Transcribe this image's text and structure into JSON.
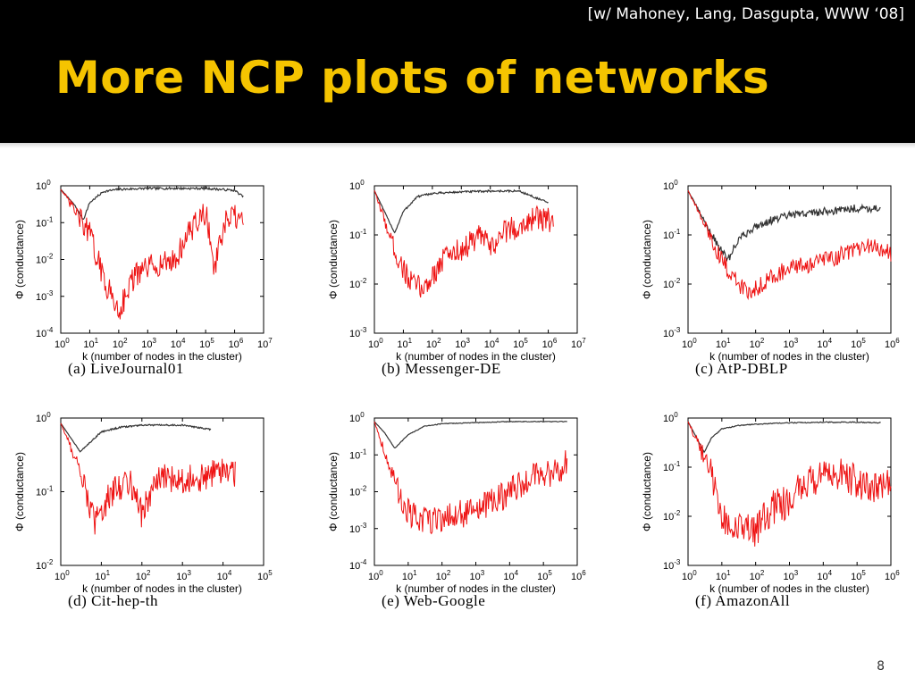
{
  "slide": {
    "citation": "[w/ Mahoney, Lang, Dasgupta, WWW ‘08]",
    "title": "More NCP plots of networks",
    "page_number": "8",
    "colors": {
      "header_bg": "#000000",
      "title": "#f5c400",
      "ncp_red": "#ee1111",
      "baseline_black": "#333333"
    }
  },
  "chart_data": [
    {
      "type": "line",
      "caption": "(a)  LiveJournal01",
      "xlabel": "k (number of nodes in the cluster)",
      "ylabel": "Φ (conductance)",
      "xscale": "log",
      "yscale": "log",
      "xlim_exp": [
        0,
        7
      ],
      "ylim_exp": [
        -4,
        0
      ],
      "series": [
        {
          "color": "#333333",
          "noise": 0.03,
          "x": [
            1,
            3,
            6,
            10,
            30,
            100,
            1000,
            100000,
            1000000,
            2000000
          ],
          "y": [
            0.8,
            0.3,
            0.12,
            0.35,
            0.7,
            0.8,
            0.85,
            0.85,
            0.75,
            0.5
          ]
        },
        {
          "color": "#ee1111",
          "noise": 0.35,
          "x": [
            1,
            10,
            30,
            100,
            300,
            1000,
            10000,
            20000,
            50000,
            100000,
            200000,
            500000,
            1000000,
            2000000
          ],
          "y": [
            0.8,
            0.05,
            0.003,
            0.0004,
            0.003,
            0.006,
            0.01,
            0.04,
            0.1,
            0.2,
            0.006,
            0.1,
            0.15,
            0.08
          ]
        }
      ]
    },
    {
      "type": "line",
      "caption": "(b)  Messenger-DE",
      "xlabel": "k (number of nodes in the cluster)",
      "ylabel": "Φ (conductance)",
      "xscale": "log",
      "yscale": "log",
      "xlim_exp": [
        0,
        7
      ],
      "ylim_exp": [
        -3,
        0
      ],
      "series": [
        {
          "color": "#333333",
          "noise": 0.02,
          "x": [
            1,
            5,
            10,
            30,
            100,
            1000,
            10000,
            100000,
            1000000
          ],
          "y": [
            0.8,
            0.11,
            0.3,
            0.6,
            0.7,
            0.75,
            0.78,
            0.78,
            0.45
          ]
        },
        {
          "color": "#ee1111",
          "noise": 0.25,
          "x": [
            1,
            5,
            10,
            20,
            50,
            100,
            300,
            1000,
            5000,
            10000,
            30000,
            100000,
            300000,
            1000000,
            1500000
          ],
          "y": [
            0.8,
            0.05,
            0.02,
            0.01,
            0.008,
            0.015,
            0.04,
            0.05,
            0.1,
            0.05,
            0.12,
            0.15,
            0.22,
            0.2,
            0.18
          ]
        }
      ]
    },
    {
      "type": "line",
      "caption": "(c)  AtP-DBLP",
      "xlabel": "k (number of nodes in the cluster)",
      "ylabel": "Φ (conductance)",
      "xscale": "log",
      "yscale": "log",
      "xlim_exp": [
        0,
        6
      ],
      "ylim_exp": [
        -3,
        0
      ],
      "series": [
        {
          "color": "#333333",
          "noise": 0.08,
          "x": [
            1,
            5,
            15,
            30,
            100,
            300,
            1000,
            10000,
            100000,
            500000
          ],
          "y": [
            0.8,
            0.1,
            0.03,
            0.08,
            0.15,
            0.2,
            0.25,
            0.3,
            0.35,
            0.35
          ]
        },
        {
          "color": "#ee1111",
          "noise": 0.18,
          "x": [
            1,
            10,
            30,
            60,
            100,
            300,
            1000,
            10000,
            100000,
            300000,
            1000000
          ],
          "y": [
            0.8,
            0.03,
            0.01,
            0.007,
            0.008,
            0.015,
            0.02,
            0.03,
            0.05,
            0.06,
            0.04
          ]
        }
      ]
    },
    {
      "type": "line",
      "caption": "(d)  Cit-hep-th",
      "xlabel": "k (number of nodes in the cluster)",
      "ylabel": "Φ (conductance)",
      "xscale": "log",
      "yscale": "log",
      "xlim_exp": [
        0,
        5
      ],
      "ylim_exp": [
        -2,
        0
      ],
      "series": [
        {
          "color": "#333333",
          "noise": 0.01,
          "x": [
            1,
            3,
            6,
            10,
            30,
            100,
            1000,
            5000
          ],
          "y": [
            0.85,
            0.35,
            0.5,
            0.65,
            0.75,
            0.8,
            0.8,
            0.7
          ]
        },
        {
          "color": "#ee1111",
          "noise": 0.2,
          "x": [
            1,
            3,
            7,
            10,
            20,
            50,
            100,
            200,
            300,
            1000,
            3000,
            10000,
            20000
          ],
          "y": [
            0.85,
            0.2,
            0.035,
            0.06,
            0.1,
            0.15,
            0.05,
            0.12,
            0.15,
            0.15,
            0.15,
            0.2,
            0.18
          ]
        }
      ]
    },
    {
      "type": "line",
      "caption": "(e)  Web-Google",
      "xlabel": "k (number of nodes in the cluster)",
      "ylabel": "Φ (conductance)",
      "xscale": "log",
      "yscale": "log",
      "xlim_exp": [
        0,
        6
      ],
      "ylim_exp": [
        -4,
        0
      ],
      "series": [
        {
          "color": "#333333",
          "noise": 0.01,
          "x": [
            1,
            2,
            4,
            10,
            30,
            100,
            1000,
            10000,
            100000,
            500000
          ],
          "y": [
            0.8,
            0.4,
            0.15,
            0.35,
            0.6,
            0.7,
            0.75,
            0.8,
            0.8,
            0.8
          ]
        },
        {
          "color": "#ee1111",
          "noise": 0.4,
          "x": [
            1,
            5,
            10,
            20,
            100,
            1000,
            3000,
            10000,
            30000,
            100000,
            300000,
            500000
          ],
          "y": [
            0.8,
            0.01,
            0.003,
            0.0015,
            0.002,
            0.003,
            0.005,
            0.01,
            0.02,
            0.03,
            0.04,
            0.06
          ]
        }
      ]
    },
    {
      "type": "line",
      "caption": "(f)  AmazonAll",
      "xlabel": "k (number of nodes in the cluster)",
      "ylabel": "Φ (conductance)",
      "xscale": "log",
      "yscale": "log",
      "xlim_exp": [
        0,
        6
      ],
      "ylim_exp": [
        -3,
        0
      ],
      "series": [
        {
          "color": "#333333",
          "noise": 0.01,
          "x": [
            1,
            3,
            5,
            10,
            30,
            100,
            1000,
            10000,
            100000,
            500000
          ],
          "y": [
            0.85,
            0.2,
            0.4,
            0.6,
            0.7,
            0.75,
            0.8,
            0.82,
            0.82,
            0.8
          ]
        },
        {
          "color": "#ee1111",
          "noise": 0.35,
          "x": [
            1,
            5,
            10,
            30,
            100,
            300,
            1000,
            3000,
            10000,
            30000,
            100000,
            300000,
            1000000
          ],
          "y": [
            0.85,
            0.07,
            0.01,
            0.005,
            0.005,
            0.015,
            0.02,
            0.05,
            0.06,
            0.07,
            0.05,
            0.04,
            0.045
          ]
        }
      ]
    }
  ]
}
